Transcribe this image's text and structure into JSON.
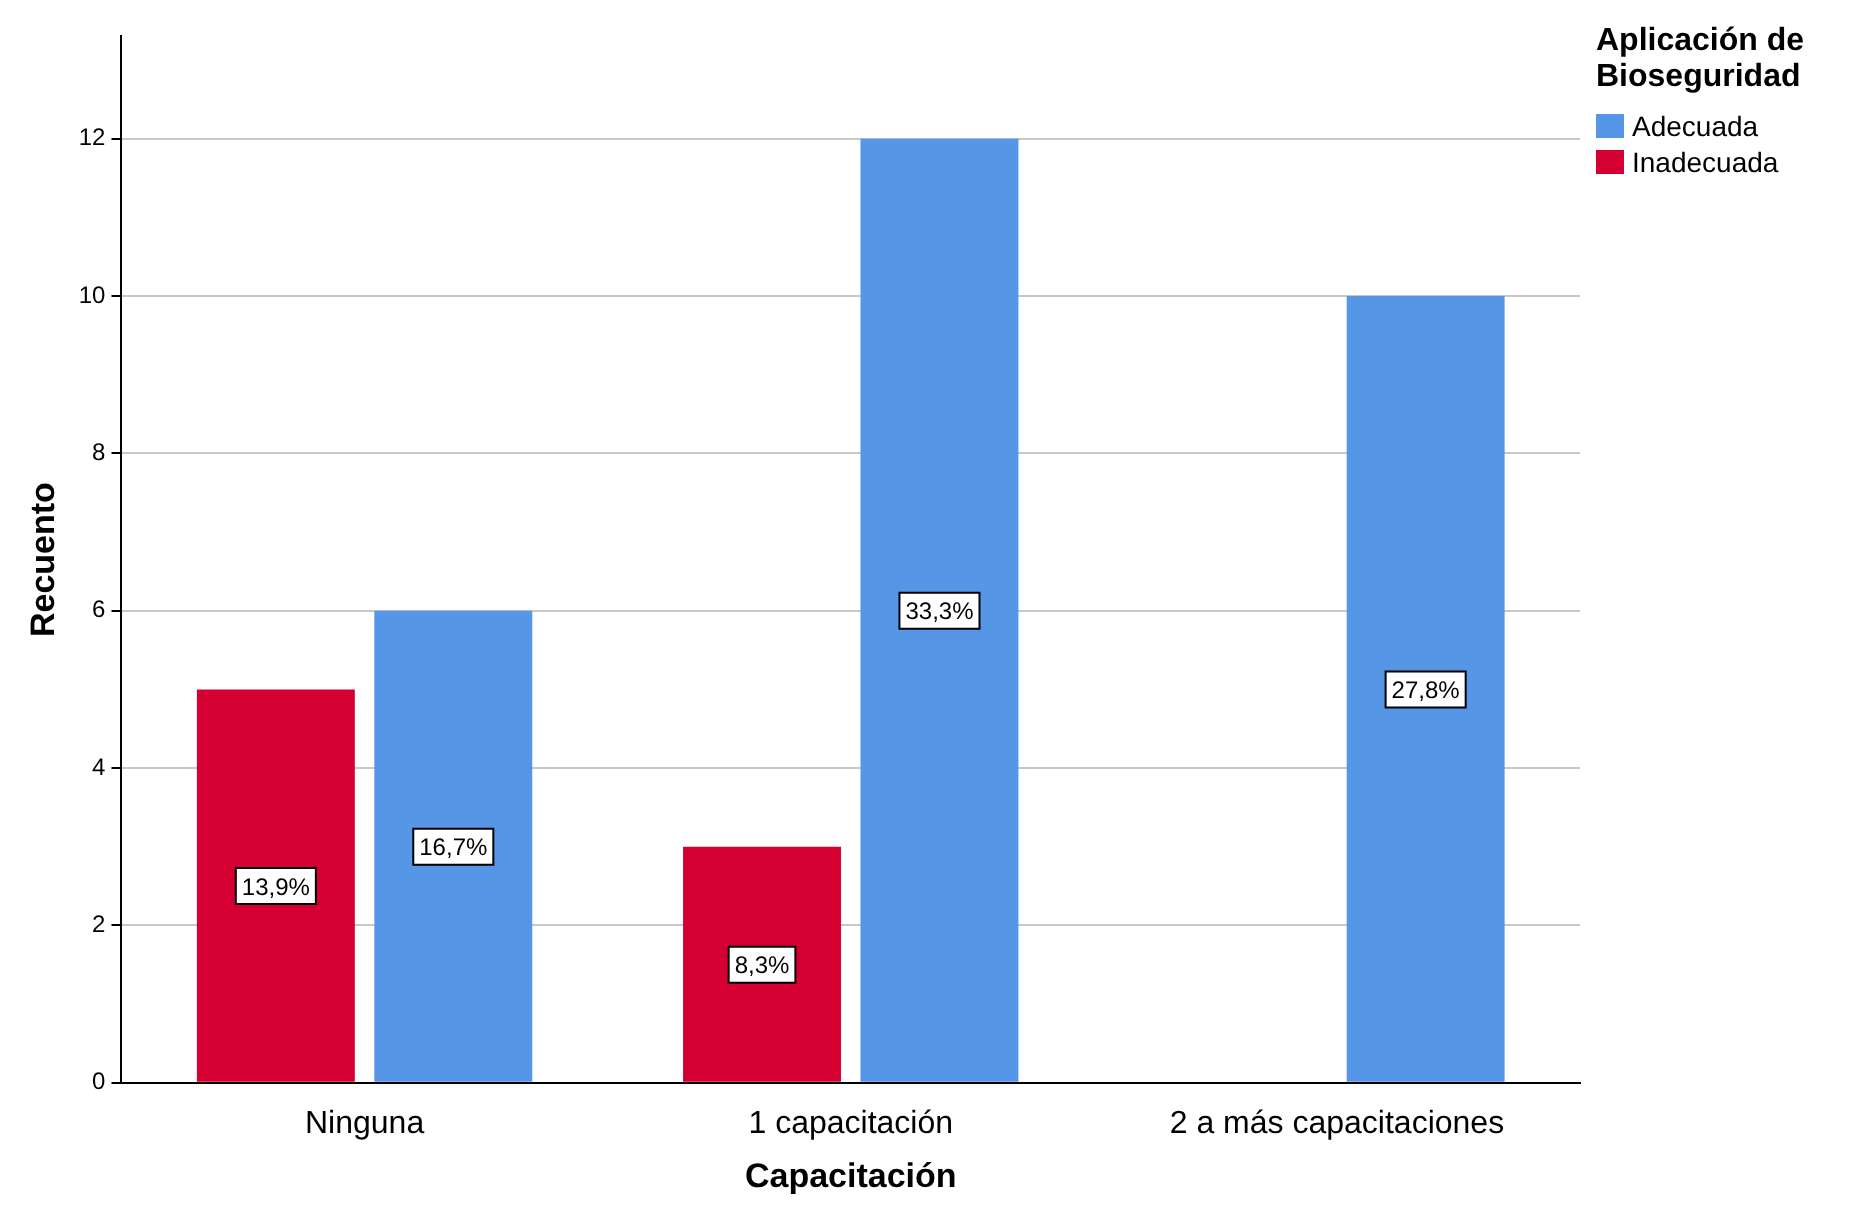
{
  "chart_data": {
    "type": "bar",
    "xlabel": "Capacitación",
    "ylabel": "Recuento",
    "legend_title": "Aplicación de Bioseguridad",
    "categories": [
      "Ninguna",
      "1 capacitación",
      "2 a más capacitaciones"
    ],
    "series": [
      {
        "name": "Inadecuada",
        "color": "#d50032",
        "values": [
          5,
          3,
          null
        ]
      },
      {
        "name": "Adecuada",
        "color": "#5596e6",
        "values": [
          6,
          12,
          10
        ]
      }
    ],
    "annotations": [
      {
        "text": "13,9%",
        "x": "Ninguna",
        "y": 2.5
      },
      {
        "text": "16,7%",
        "x": "Ninguna",
        "y": 3
      },
      {
        "text": "8,3%",
        "x": "1 capacitación",
        "y": 1.5
      },
      {
        "text": "33,3%",
        "x": "1 capacitación",
        "y": 6
      },
      {
        "text": "27,8%",
        "x": "2 a más capacitaciones",
        "y": 5
      }
    ],
    "ylim": [
      0,
      13.3
    ],
    "yticks": [
      0,
      2,
      4,
      6,
      8,
      10,
      12
    ],
    "grid": "y",
    "legend": "top right"
  }
}
